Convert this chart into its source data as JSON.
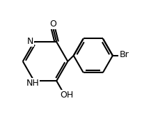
{
  "background_color": "#ffffff",
  "line_color": "#000000",
  "line_width": 1.5,
  "font_size": 9,
  "figsize": [
    2.28,
    1.68
  ],
  "dpi": 100,
  "labels": {
    "N_text": "N",
    "NH_text": "NH",
    "O_text": "O",
    "OH_text": "OH",
    "Br_text": "Br"
  }
}
